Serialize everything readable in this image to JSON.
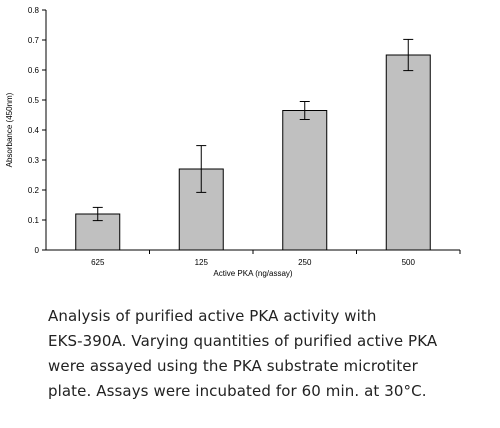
{
  "chart_data": {
    "type": "bar",
    "categories": [
      "625",
      "125",
      "250",
      "500"
    ],
    "values": [
      0.12,
      0.27,
      0.465,
      0.65
    ],
    "errors": [
      0.022,
      0.078,
      0.03,
      0.052
    ],
    "xlabel": "Active PKA (ng/assay)",
    "ylabel": "Absorbance (450nm)",
    "ylim": [
      0,
      0.8
    ],
    "yticks": [
      0,
      0.1,
      0.2,
      0.3,
      0.4,
      0.5,
      0.6,
      0.7,
      0.8
    ],
    "grid": false,
    "bar_color": "#c0c0c0",
    "title": ""
  },
  "caption": {
    "lines": [
      "Analysis of purified active PKA activity with",
      "EKS-390A.  Varying quantities of purified active PKA",
      "were assayed using the PKA substrate microtiter",
      "plate.  Assays were incubated for 60 min. at 30°C."
    ]
  }
}
